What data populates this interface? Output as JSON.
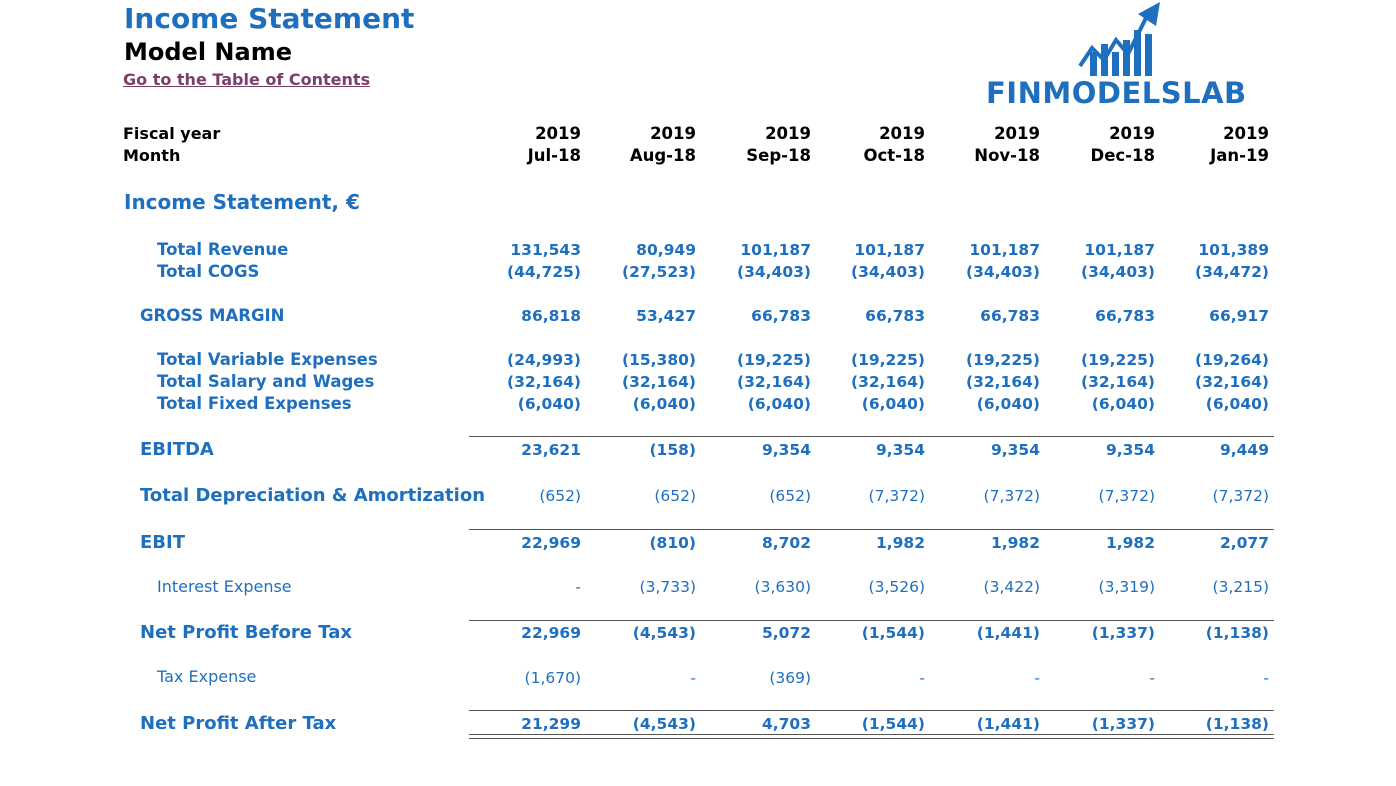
{
  "header": {
    "title": "Income Statement",
    "model_name": "Model Name",
    "toc_link": "Go to the Table of Contents"
  },
  "logo": {
    "text": "FINMODELSLAB",
    "icon": "growth-chart-icon"
  },
  "columns": {
    "fiscal_year_label": "Fiscal year",
    "month_label": "Month",
    "years": [
      "2019",
      "2019",
      "2019",
      "2019",
      "2019",
      "2019",
      "2019"
    ],
    "months": [
      "Jul-18",
      "Aug-18",
      "Sep-18",
      "Oct-18",
      "Nov-18",
      "Dec-18",
      "Jan-19"
    ]
  },
  "section_title": "Income Statement, €",
  "rows": {
    "total_revenue": {
      "label": "Total Revenue",
      "values": [
        "131,543",
        "80,949",
        "101,187",
        "101,187",
        "101,187",
        "101,187",
        "101,389"
      ]
    },
    "total_cogs": {
      "label": "Total COGS",
      "values": [
        "(44,725)",
        "(27,523)",
        "(34,403)",
        "(34,403)",
        "(34,403)",
        "(34,403)",
        "(34,472)"
      ]
    },
    "gross_margin": {
      "label": "GROSS MARGIN",
      "values": [
        "86,818",
        "53,427",
        "66,783",
        "66,783",
        "66,783",
        "66,783",
        "66,917"
      ]
    },
    "variable_expenses": {
      "label": "Total Variable Expenses",
      "values": [
        "(24,993)",
        "(15,380)",
        "(19,225)",
        "(19,225)",
        "(19,225)",
        "(19,225)",
        "(19,264)"
      ]
    },
    "salary_wages": {
      "label": "Total Salary and Wages",
      "values": [
        "(32,164)",
        "(32,164)",
        "(32,164)",
        "(32,164)",
        "(32,164)",
        "(32,164)",
        "(32,164)"
      ]
    },
    "fixed_expenses": {
      "label": "Total Fixed Expenses",
      "values": [
        "(6,040)",
        "(6,040)",
        "(6,040)",
        "(6,040)",
        "(6,040)",
        "(6,040)",
        "(6,040)"
      ]
    },
    "ebitda": {
      "label": "EBITDA",
      "values": [
        "23,621",
        "(158)",
        "9,354",
        "9,354",
        "9,354",
        "9,354",
        "9,449"
      ]
    },
    "depreciation": {
      "label": "Total Depreciation & Amortization",
      "values": [
        "(652)",
        "(652)",
        "(652)",
        "(7,372)",
        "(7,372)",
        "(7,372)",
        "(7,372)"
      ]
    },
    "ebit": {
      "label": "EBIT",
      "values": [
        "22,969",
        "(810)",
        "8,702",
        "1,982",
        "1,982",
        "1,982",
        "2,077"
      ]
    },
    "interest": {
      "label": "Interest Expense",
      "values": [
        "-",
        "(3,733)",
        "(3,630)",
        "(3,526)",
        "(3,422)",
        "(3,319)",
        "(3,215)"
      ]
    },
    "profit_before_tax": {
      "label": "Net Profit Before Tax",
      "values": [
        "22,969",
        "(4,543)",
        "5,072",
        "(1,544)",
        "(1,441)",
        "(1,337)",
        "(1,138)"
      ]
    },
    "tax": {
      "label": "Tax Expense",
      "values": [
        "(1,670)",
        "-",
        "(369)",
        "-",
        "-",
        "-",
        "-"
      ]
    },
    "profit_after_tax": {
      "label": "Net Profit After Tax",
      "values": [
        "21,299",
        "(4,543)",
        "4,703",
        "(1,544)",
        "(1,441)",
        "(1,337)",
        "(1,138)"
      ]
    }
  },
  "colors": {
    "accent": "#1f6fbf",
    "link": "#7b3f6b"
  }
}
